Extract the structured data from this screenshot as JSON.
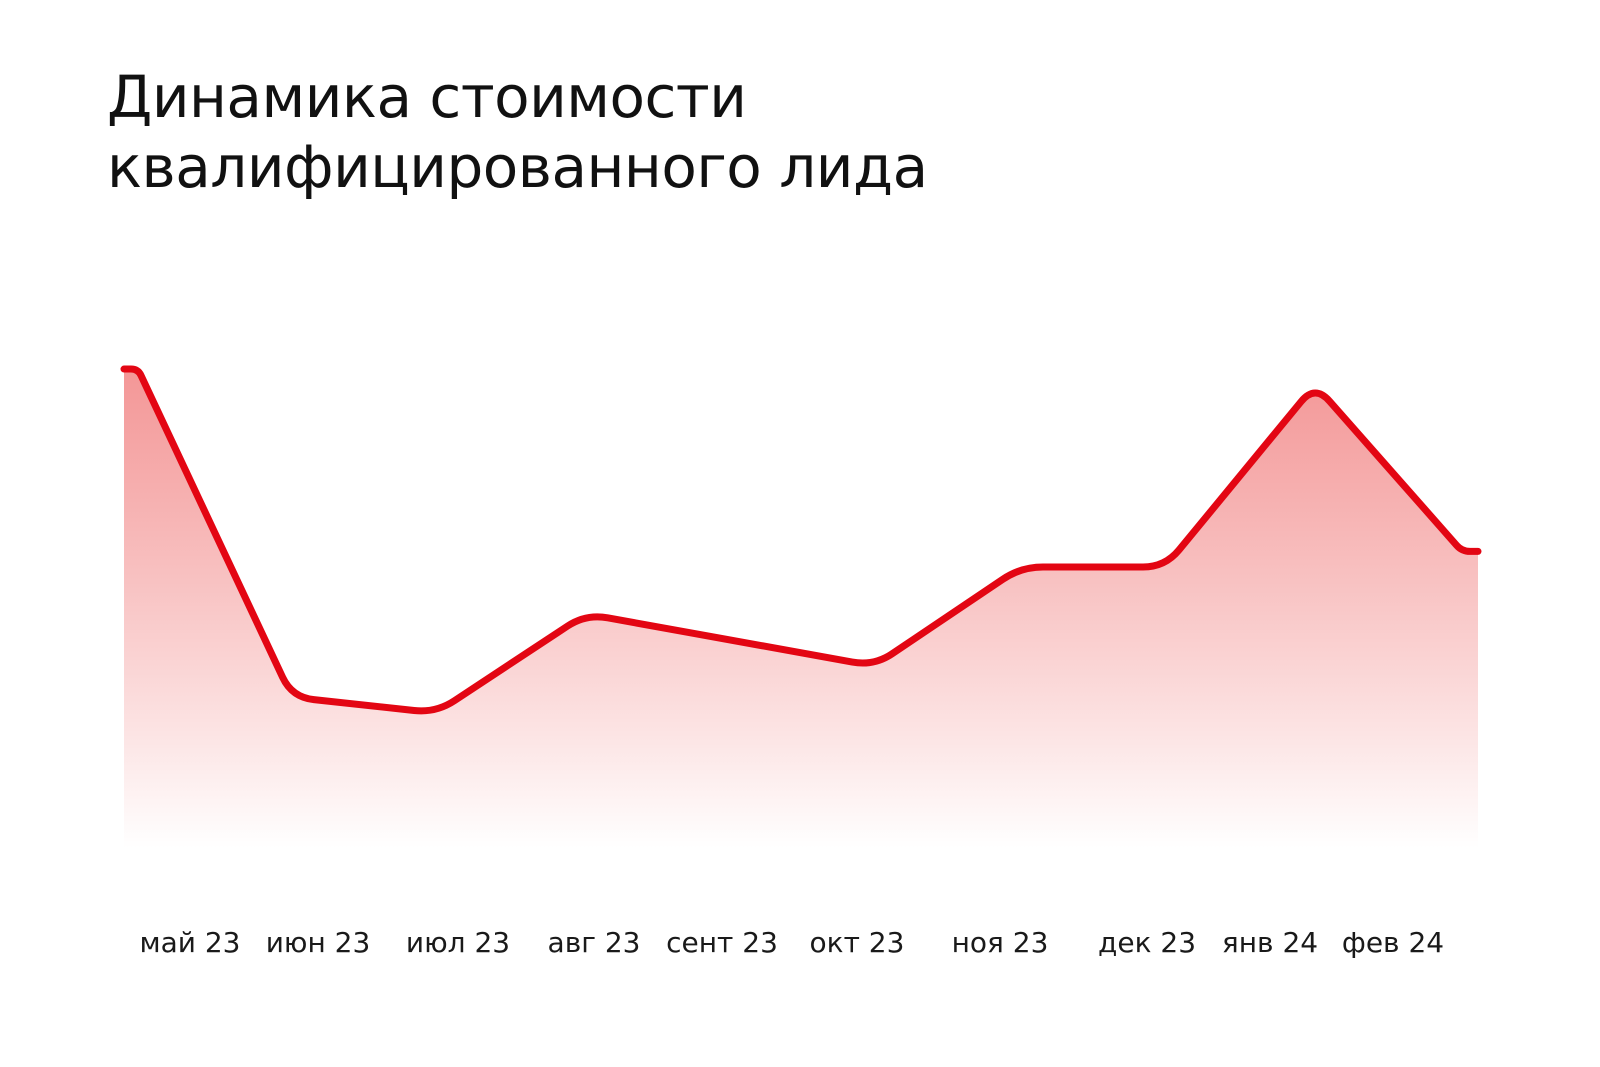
{
  "title": {
    "line1": "Динамика стоимости",
    "line2": "квалифицированного лида"
  },
  "chart_data": {
    "type": "area",
    "title": "Динамика стоимости квалифицированного лида",
    "xlabel": "",
    "ylabel": "",
    "categories": [
      "май 23",
      "июн 23",
      "июл 23",
      "авг 23",
      "сент 23",
      "окт 23",
      "ноя 23",
      "дек 23",
      "янв 24",
      "фев 24"
    ],
    "series": [
      {
        "values": [
          100,
          37,
          34,
          53,
          null,
          43,
          62,
          62,
          97,
          65
        ]
      }
    ],
    "ylim": [
      0,
      105
    ],
    "grid": false,
    "legend": "none",
    "y_axis_visible": false,
    "colors": {
      "line": "#e30613",
      "fill_top": "#f28b8b",
      "fill_bottom": "#ffffff"
    }
  }
}
